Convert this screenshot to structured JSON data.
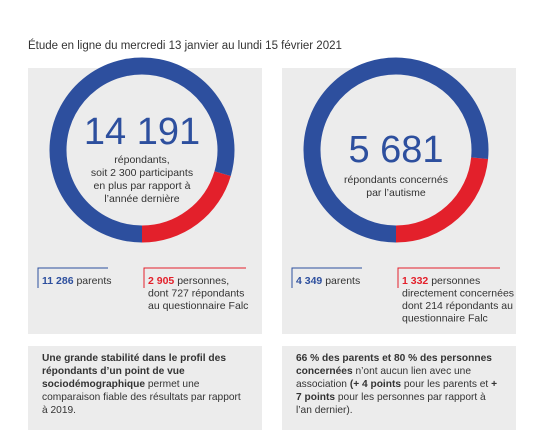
{
  "header": {
    "title": "Étude en ligne du mercredi 13 janvier au lundi 15 février 2021"
  },
  "colors": {
    "blue": "#2d4f9e",
    "red": "#e3202b",
    "panel": "#ececec"
  },
  "panels": [
    {
      "total": {
        "value": 14191,
        "label": "14 191"
      },
      "lines": [
        "répondants,",
        "soit 2 300 participants",
        "en plus par rapport à",
        "l’année dernière"
      ],
      "segments": [
        {
          "value": 11286,
          "label": "11 286",
          "lines": [
            "parents"
          ]
        },
        {
          "value": 2905,
          "label": "2 905",
          "lines": [
            "personnes,",
            "dont 727 répondants",
            "au questionnaire Falc"
          ]
        }
      ],
      "note": [
        {
          "text": "Une grande stabilité dans le profil des répondants d’un point de vue sociodémographique",
          "bold": true
        },
        {
          "text": " permet une comparaison fiable des résultats par rapport à 2019.",
          "bold": false
        }
      ]
    },
    {
      "total": {
        "value": 5681,
        "label": "5 681"
      },
      "lines": [
        "répondants concernés",
        "par l’autisme"
      ],
      "segments": [
        {
          "value": 4349,
          "label": "4 349",
          "lines": [
            "parents"
          ]
        },
        {
          "value": 1332,
          "label": "1 332",
          "lines": [
            "personnes",
            "directement concernées",
            "dont 214 répondants au",
            "questionnaire Falc"
          ]
        }
      ],
      "note": [
        {
          "text": "66 % des parents et 80 % des personnes concernées",
          "bold": true
        },
        {
          "text": " n’ont aucun lien avec une association ",
          "bold": false
        },
        {
          "text": "(+ 4 points",
          "bold": true
        },
        {
          "text": " pour les parents et ",
          "bold": false
        },
        {
          "text": "+ 7 points",
          "bold": true
        },
        {
          "text": " pour les personnes par rapport à l’an dernier).",
          "bold": false
        }
      ]
    }
  ]
}
